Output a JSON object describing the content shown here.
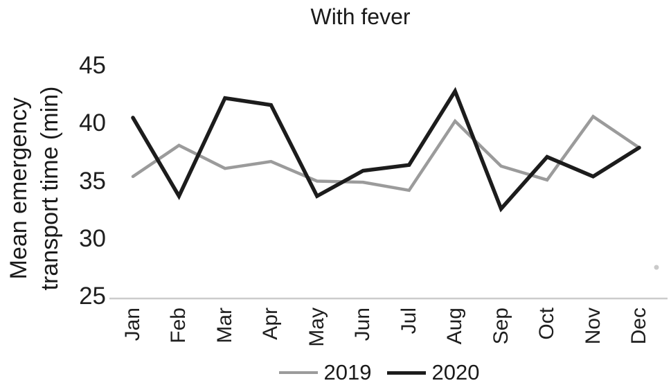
{
  "chart_data": {
    "type": "line",
    "title": "With fever",
    "xlabel": "",
    "ylabel": "Mean emergency transport time (min)",
    "ylabel_lines": [
      "Mean emergency",
      "transport time (min)"
    ],
    "categories": [
      "Jan",
      "Feb",
      "Mar",
      "Apr",
      "May",
      "Jun",
      "Jul",
      "Aug",
      "Sep",
      "Oct",
      "Nov",
      "Dec"
    ],
    "ylim": [
      25,
      45
    ],
    "yticks": [
      45,
      40,
      35,
      30,
      25
    ],
    "grid": false,
    "legend_position": "bottom",
    "axis_line_color": "#cccccc",
    "series": [
      {
        "name": "2019",
        "color": "#9b9b9b",
        "values": [
          35.4,
          38.1,
          36.1,
          36.7,
          35.0,
          34.9,
          34.2,
          40.2,
          36.3,
          35.1,
          40.6,
          37.9
        ]
      },
      {
        "name": "2020",
        "color": "#1c1c1c",
        "values": [
          40.5,
          33.7,
          42.2,
          41.6,
          33.7,
          35.9,
          36.4,
          42.8,
          32.6,
          37.1,
          35.4,
          37.9
        ]
      }
    ]
  }
}
